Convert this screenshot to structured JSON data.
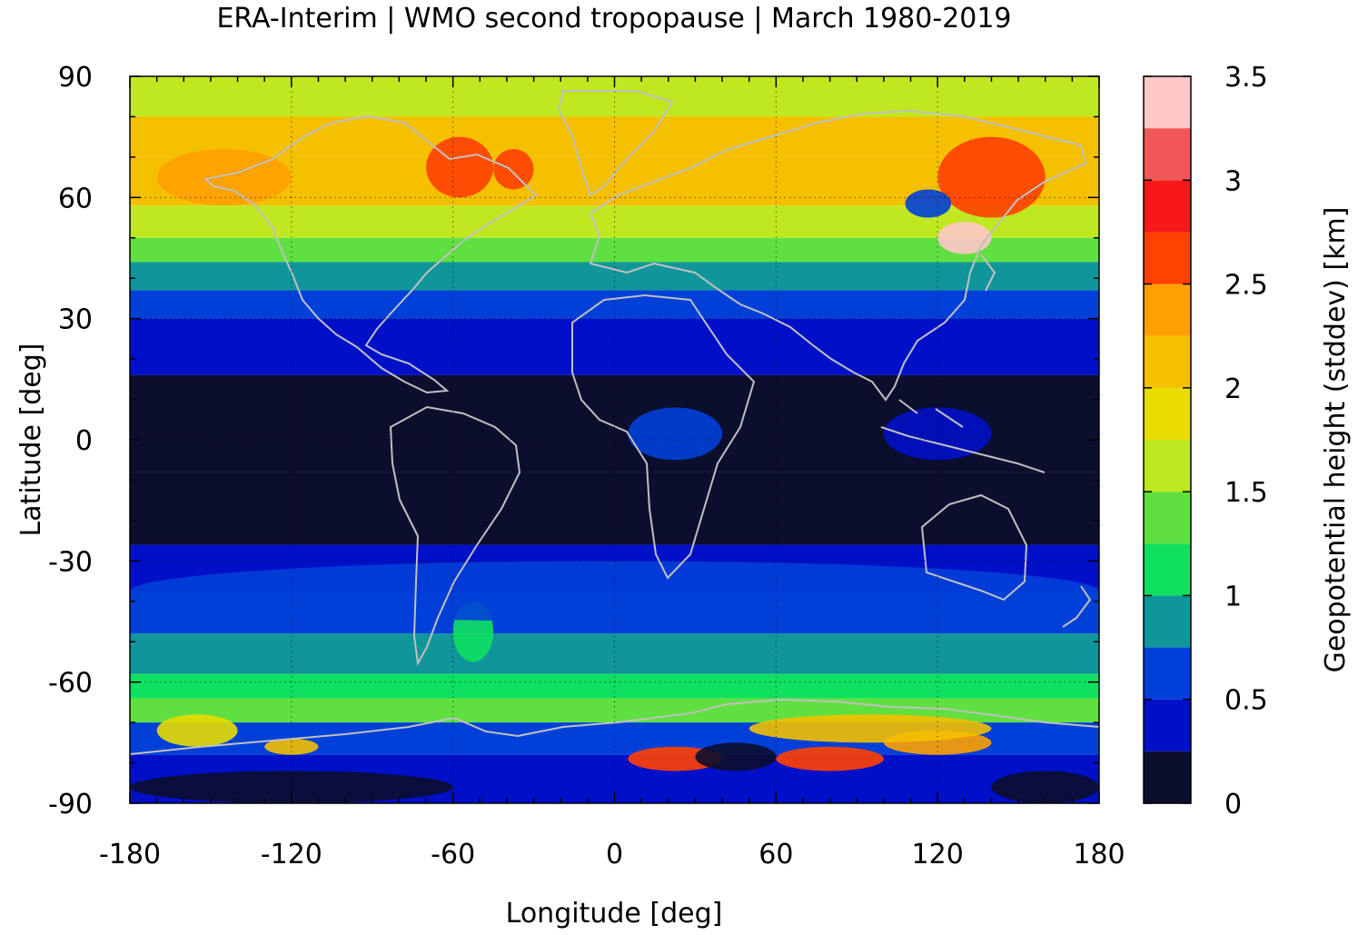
{
  "chart_data": {
    "type": "heatmap",
    "title": "ERA-Interim | WMO second tropopause | March 1980-2019",
    "xlabel": "Longitude [deg]",
    "ylabel": "Latitude [deg]",
    "colorbar_label": "Geopotential height (stddev) [km]",
    "xlim": [
      -180,
      180
    ],
    "ylim": [
      -90,
      90
    ],
    "x_ticks": [
      -180,
      -120,
      -60,
      0,
      60,
      120,
      180
    ],
    "y_ticks": [
      90,
      60,
      30,
      0,
      -30,
      -60,
      -90
    ],
    "x_tick_labels": [
      "-180",
      "-120",
      "-60",
      "0",
      "60",
      "120",
      "180"
    ],
    "y_tick_labels": [
      "90",
      "60",
      "30",
      "0",
      "-30",
      "-60",
      "-90"
    ],
    "grid": true,
    "colorbar": {
      "range": [
        0,
        3.5
      ],
      "tick_values": [
        0,
        0.5,
        1,
        1.5,
        2,
        2.5,
        3,
        3.5
      ],
      "tick_labels": [
        "0",
        "0.5",
        "1",
        "1.5",
        "2",
        "2.5",
        "3",
        "3.5"
      ],
      "colors": [
        "#0c0e2e",
        "#0010c8",
        "#0040d8",
        "#10969a",
        "#10e060",
        "#60e040",
        "#c0e820",
        "#e8dc00",
        "#f4c000",
        "#ffa000",
        "#ff4000",
        "#f81818",
        "#f05858",
        "#ffc8c8"
      ]
    },
    "zonal_bands": [
      {
        "lat": [
          80,
          90
        ],
        "value": 1.7
      },
      {
        "lat": [
          70,
          80
        ],
        "value": 2.0
      },
      {
        "lat": [
          58,
          70
        ],
        "value": 2.1
      },
      {
        "lat": [
          50,
          58
        ],
        "value": 1.6
      },
      {
        "lat": [
          44,
          50
        ],
        "value": 1.3
      },
      {
        "lat": [
          37,
          44
        ],
        "value": 0.95
      },
      {
        "lat": [
          30,
          37
        ],
        "value": 0.65
      },
      {
        "lat": [
          16,
          30
        ],
        "value": 0.4
      },
      {
        "lat": [
          -8,
          16
        ],
        "value": 0.1
      },
      {
        "lat": [
          -26,
          -8
        ],
        "value": 0.1
      },
      {
        "lat": [
          -38,
          -26
        ],
        "value": 0.45
      },
      {
        "lat": [
          -48,
          -38
        ],
        "value": 0.65
      },
      {
        "lat": [
          -58,
          -48
        ],
        "value": 0.9
      },
      {
        "lat": [
          -64,
          -58
        ],
        "value": 1.1
      },
      {
        "lat": [
          -70,
          -64
        ],
        "value": 1.35
      },
      {
        "lat": [
          -78,
          -70
        ],
        "value": 0.55
      },
      {
        "lat": [
          -90,
          -78
        ],
        "value": 0.3
      }
    ],
    "regional_features": [
      {
        "lon": [
          -70,
          -45
        ],
        "lat": [
          60,
          75
        ],
        "value": 2.6
      },
      {
        "lon": [
          -45,
          -30
        ],
        "lat": [
          62,
          72
        ],
        "value": 2.7
      },
      {
        "lon": [
          -170,
          -120
        ],
        "lat": [
          58,
          72
        ],
        "value": 2.3
      },
      {
        "lon": [
          120,
          160
        ],
        "lat": [
          55,
          75
        ],
        "value": 2.7
      },
      {
        "lon": [
          120,
          140
        ],
        "lat": [
          46,
          54
        ],
        "value": 3.4
      },
      {
        "lon": [
          108,
          125
        ],
        "lat": [
          55,
          62
        ],
        "value": 0.5
      },
      {
        "lon": [
          60,
          100
        ],
        "lat": [
          -82,
          -76
        ],
        "value": 2.7
      },
      {
        "lon": [
          100,
          140
        ],
        "lat": [
          -78,
          -72
        ],
        "value": 2.4
      },
      {
        "lon": [
          50,
          140
        ],
        "lat": [
          -75,
          -68
        ],
        "value": 2.0
      },
      {
        "lon": [
          5,
          40
        ],
        "lat": [
          -82,
          -76
        ],
        "value": 2.6
      },
      {
        "lon": [
          30,
          60
        ],
        "lat": [
          -82,
          -75
        ],
        "value": 0.1
      },
      {
        "lon": [
          -170,
          -140
        ],
        "lat": [
          -76,
          -68
        ],
        "value": 1.8
      },
      {
        "lon": [
          -130,
          -110
        ],
        "lat": [
          -78,
          -74
        ],
        "value": 2.2
      },
      {
        "lon": [
          -180,
          -60
        ],
        "lat": [
          -90,
          -82
        ],
        "value": 0.1
      },
      {
        "lon": [
          140,
          180
        ],
        "lat": [
          -90,
          -82
        ],
        "value": 0.1
      },
      {
        "lon": [
          -60,
          -45
        ],
        "lat": [
          -55,
          -40
        ],
        "value": 1.05
      },
      {
        "lon": [
          5,
          40
        ],
        "lat": [
          -5,
          8
        ],
        "value": 0.5
      },
      {
        "lon": [
          100,
          140
        ],
        "lat": [
          -5,
          8
        ],
        "value": 0.45
      },
      {
        "lon": [
          -180,
          180
        ],
        "lat": [
          -45,
          -30
        ],
        "value": 0.5
      }
    ]
  }
}
